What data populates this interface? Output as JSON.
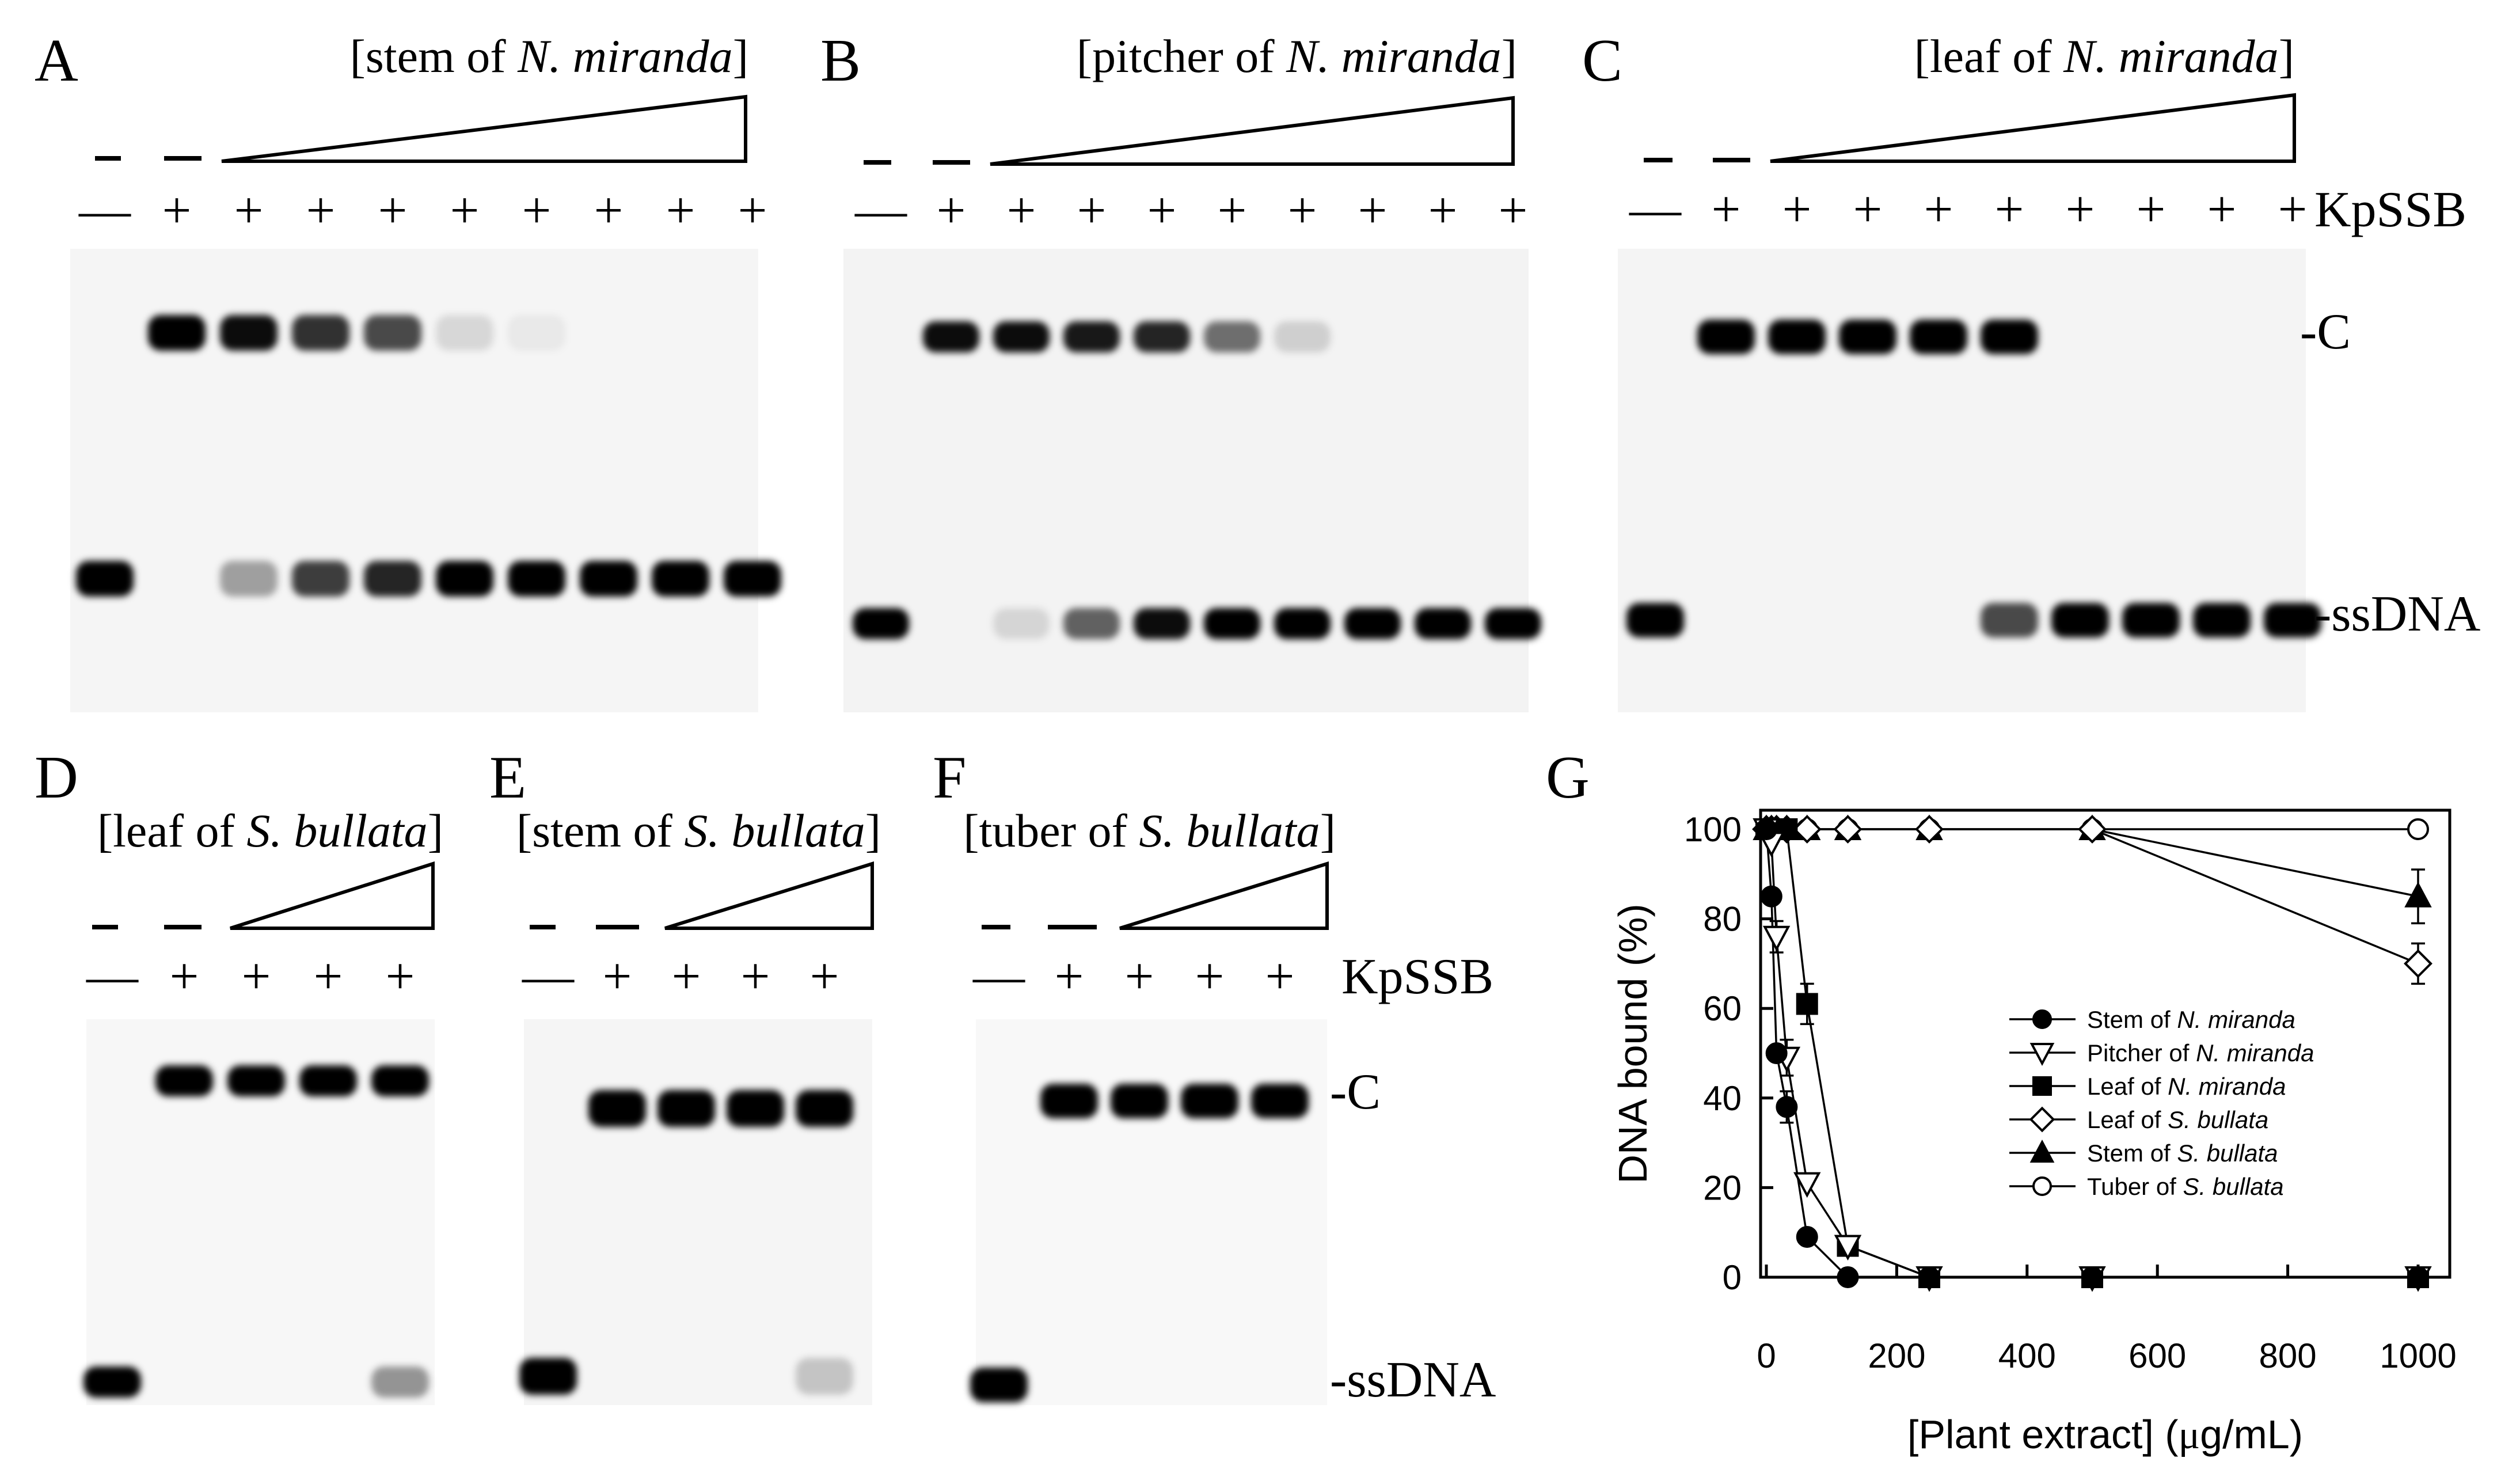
{
  "figure": {
    "panels": {
      "A": {
        "letter": "A",
        "title_pre": "[stem of ",
        "title_it": "N. miranda",
        "title_post": "]",
        "lanes": [
          "—",
          "+",
          "+",
          "+",
          "+",
          "+",
          "+",
          "+",
          "+",
          "+"
        ],
        "complex": [
          0,
          1.0,
          0.95,
          0.8,
          0.7,
          0.12,
          0.05,
          0,
          0,
          0
        ],
        "free": [
          1.0,
          0,
          0.35,
          0.75,
          0.85,
          1.0,
          1.0,
          1.0,
          1.0,
          1.0
        ]
      },
      "B": {
        "letter": "B",
        "title_pre": "[pitcher of ",
        "title_it": "N. miranda",
        "title_post": "]",
        "lanes": [
          "—",
          "+",
          "+",
          "+",
          "+",
          "+",
          "+",
          "+",
          "+",
          "+"
        ],
        "complex": [
          0,
          0.95,
          0.95,
          0.9,
          0.85,
          0.55,
          0.15,
          0,
          0,
          0
        ],
        "free": [
          1.0,
          0,
          0.12,
          0.6,
          0.95,
          1.0,
          1.0,
          1.0,
          1.0,
          1.0
        ]
      },
      "C": {
        "letter": "C",
        "title_pre": "[leaf of ",
        "title_it": "N. miranda",
        "title_post": "]",
        "lanes": [
          "—",
          "+",
          "+",
          "+",
          "+",
          "+",
          "+",
          "+",
          "+",
          "+"
        ],
        "kpssb_label": "KpSSB",
        "c_label": "-C",
        "ss_label": "-ssDNA",
        "complex": [
          0,
          1.0,
          1.0,
          1.0,
          1.0,
          1.0,
          0,
          0,
          0,
          0
        ],
        "free": [
          1.0,
          0,
          0,
          0,
          0,
          0.7,
          1.0,
          1.0,
          1.0,
          1.0
        ]
      },
      "D": {
        "letter": "D",
        "title_pre": "[leaf of ",
        "title_it": "S. bullata",
        "title_post": "]",
        "lanes": [
          "—",
          "+",
          "+",
          "+",
          "+"
        ],
        "complex": [
          0,
          1.0,
          1.0,
          1.0,
          1.0
        ],
        "free": [
          1.0,
          0,
          0,
          0,
          0.4
        ]
      },
      "E": {
        "letter": "E",
        "title_pre": "[stem of ",
        "title_it": "S. bullata",
        "title_post": "]",
        "lanes": [
          "—",
          "+",
          "+",
          "+",
          "+"
        ],
        "complex": [
          0,
          1.0,
          1.0,
          1.0,
          1.0
        ],
        "free": [
          1.0,
          0,
          0,
          0,
          0.2
        ]
      },
      "F": {
        "letter": "F",
        "title_pre": "[tuber of ",
        "title_it": "S. bullata",
        "title_post": "]",
        "lanes": [
          "—",
          "+",
          "+",
          "+",
          "+"
        ],
        "kpssb_label": "KpSSB",
        "c_label": "-C",
        "ss_label": "-ssDNA",
        "complex": [
          0,
          1.0,
          1.0,
          1.0,
          1.0
        ],
        "free": [
          1.0,
          0,
          0,
          0,
          0
        ]
      }
    },
    "panel_g_letter": "G"
  },
  "chart_data": {
    "type": "line",
    "xlabel_pre": "[Plant extract] (",
    "xlabel_mu": "μ",
    "xlabel_post": "g/mL)",
    "ylabel": "DNA bound (%)",
    "xlim": [
      0,
      1000
    ],
    "ylim": [
      0,
      100
    ],
    "xticks": [
      0,
      200,
      400,
      600,
      800,
      1000
    ],
    "yticks": [
      0,
      20,
      40,
      60,
      80,
      100
    ],
    "legend_position": "center-right",
    "series": [
      {
        "name_pre": "Stem of ",
        "name_it": "N. miranda",
        "marker": "circle",
        "fill": "black",
        "x": [
          0,
          7.8,
          15.6,
          31.25,
          62.5,
          125,
          250,
          500,
          1000
        ],
        "y": [
          100,
          85,
          50,
          38,
          9,
          0,
          0,
          0,
          0
        ]
      },
      {
        "name_pre": "Pitcher of ",
        "name_it": "N. miranda",
        "marker": "triangle-down",
        "fill": "white",
        "x": [
          0,
          7.8,
          15.6,
          31.25,
          62.5,
          125,
          250,
          500,
          1000
        ],
        "y": [
          100,
          97,
          76,
          49,
          21,
          7,
          0,
          0,
          0
        ]
      },
      {
        "name_pre": "Leaf of ",
        "name_it": "N. miranda",
        "marker": "square",
        "fill": "black",
        "x": [
          0,
          7.8,
          15.6,
          31.25,
          62.5,
          125,
          250,
          500,
          1000
        ],
        "y": [
          100,
          100,
          100,
          100,
          61,
          7,
          0,
          0,
          0
        ]
      },
      {
        "name_pre": "Leaf of ",
        "name_it": "S. bullata",
        "marker": "diamond",
        "fill": "white",
        "x": [
          0,
          7.8,
          15.6,
          31.25,
          62.5,
          125,
          250,
          500,
          1000
        ],
        "y": [
          100,
          100,
          100,
          100,
          100,
          100,
          100,
          100,
          70
        ]
      },
      {
        "name_pre": "Stem of ",
        "name_it": "S. bullata",
        "marker": "triangle-up",
        "fill": "black",
        "x": [
          0,
          7.8,
          15.6,
          31.25,
          62.5,
          125,
          250,
          500,
          1000
        ],
        "y": [
          100,
          100,
          100,
          100,
          100,
          100,
          100,
          100,
          85
        ]
      },
      {
        "name_pre": "Tuber of ",
        "name_it": "S. bullata",
        "marker": "circle",
        "fill": "white",
        "x": [
          0,
          7.8,
          15.6,
          31.25,
          62.5,
          125,
          250,
          500,
          1000
        ],
        "y": [
          100,
          100,
          100,
          100,
          100,
          100,
          100,
          100,
          100
        ]
      }
    ]
  }
}
